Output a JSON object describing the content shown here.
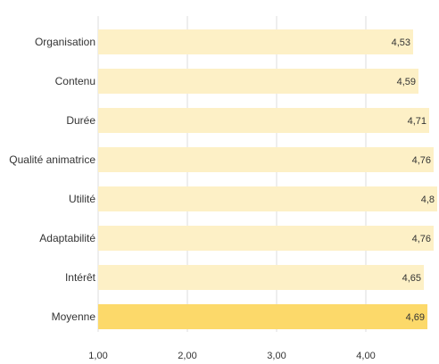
{
  "chart_data": {
    "type": "bar",
    "orientation": "horizontal",
    "categories": [
      "Organisation",
      "Contenu",
      "Durée",
      "Qualité animatrice",
      "Utilité",
      "Adaptabilité",
      "Intérêt",
      "Moyenne"
    ],
    "values": [
      4.53,
      4.59,
      4.71,
      4.76,
      4.8,
      4.76,
      4.65,
      4.69
    ],
    "value_labels": [
      "4,53",
      "4,59",
      "4,71",
      "4,76",
      "4,8",
      "4,76",
      "4,65",
      "4,69"
    ],
    "x_ticks": [
      1,
      2,
      3,
      4
    ],
    "x_tick_labels": [
      "1,00",
      "2,00",
      "3,00",
      "4,00"
    ],
    "xlim": [
      1,
      4.8
    ],
    "grid": true,
    "colors": {
      "bar": "#fdf0c6",
      "highlight": "#fcd96a",
      "grid": "#dddddd"
    },
    "highlight_category": "Moyenne"
  }
}
